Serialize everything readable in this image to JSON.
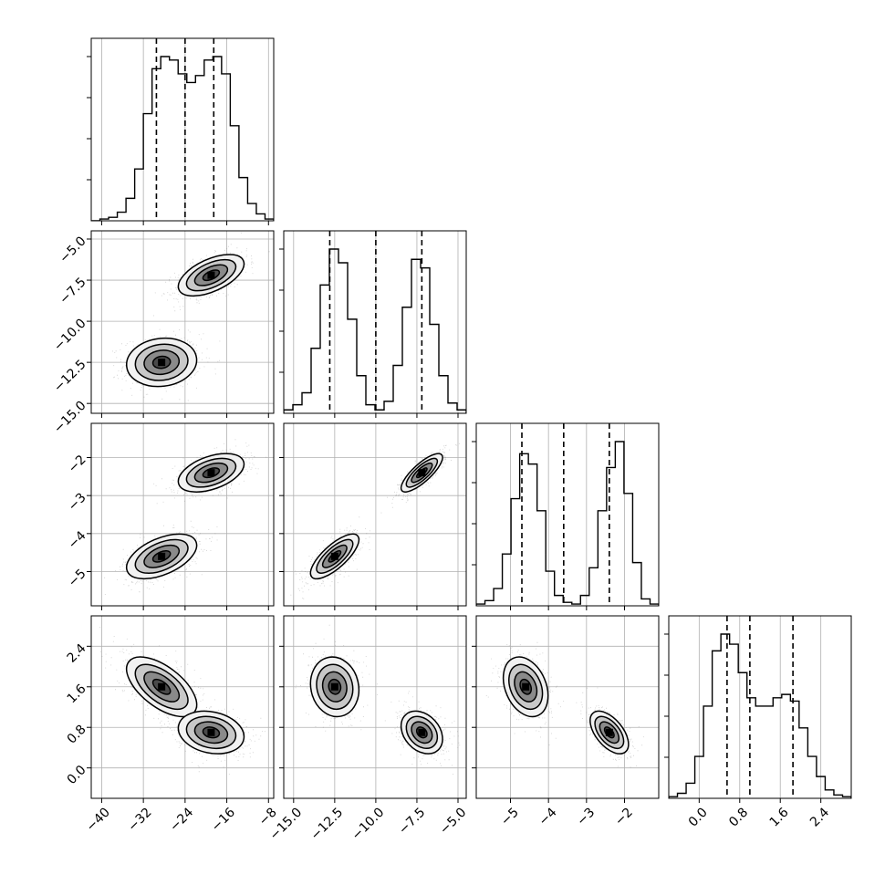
{
  "chart_data": {
    "type": "corner",
    "parameters": [
      {
        "id": "p0",
        "range": [
          -42,
          -7
        ],
        "ticks": [
          -40,
          -32,
          -24,
          -16,
          -8
        ],
        "tick_labels": [
          "−40",
          "−32",
          "−24",
          "−16",
          "−8"
        ],
        "quantiles": [
          -29.5,
          -24.0,
          -18.5
        ],
        "histogram": [
          0,
          1,
          2,
          5,
          13,
          30,
          62,
          88,
          95,
          93,
          85,
          80,
          84,
          93,
          95,
          85,
          55,
          25,
          10,
          4,
          1
        ]
      },
      {
        "id": "p1",
        "range": [
          -15.6,
          -4.5
        ],
        "ticks": [
          -15.0,
          -12.5,
          -10.0,
          -7.5,
          -5.0
        ],
        "tick_labels": [
          "−15.0",
          "−12.5",
          "−10.0",
          "−7.5",
          "−5.0"
        ],
        "quantiles": [
          -12.8,
          -10.0,
          -7.2
        ],
        "histogram": [
          2,
          5,
          12,
          38,
          75,
          96,
          88,
          55,
          22,
          5,
          2,
          7,
          28,
          62,
          90,
          85,
          52,
          22,
          6,
          2
        ]
      },
      {
        "id": "p2",
        "range": [
          -5.9,
          -1.1
        ],
        "ticks": [
          -5,
          -4,
          -3,
          -2
        ],
        "tick_labels": [
          "−5",
          "−4",
          "−3",
          "−2"
        ],
        "quantiles": [
          -4.7,
          -3.6,
          -2.4
        ],
        "histogram": [
          1,
          3,
          10,
          30,
          62,
          88,
          82,
          55,
          20,
          6,
          2,
          1,
          6,
          22,
          55,
          80,
          95,
          65,
          25,
          4,
          1
        ]
      },
      {
        "id": "p3",
        "range": [
          -0.6,
          3.0
        ],
        "ticks": [
          0.0,
          0.8,
          1.6,
          2.4
        ],
        "tick_labels": [
          "0.0",
          "0.8",
          "1.6",
          "2.4"
        ],
        "quantiles": [
          0.55,
          1.0,
          1.85
        ],
        "histogram": [
          1,
          3,
          9,
          25,
          55,
          88,
          98,
          92,
          75,
          60,
          55,
          55,
          60,
          62,
          58,
          42,
          25,
          13,
          5,
          2,
          1
        ]
      }
    ],
    "modes": [
      {
        "p0": -28.5,
        "p1": -12.5,
        "p2": -4.6,
        "p3": 1.6,
        "sd": [
          3.2,
          0.7,
          0.28,
          0.28
        ],
        "corr": {
          "p0p1": 0.1,
          "p0p2": 0.5,
          "p0p3": -0.6,
          "p1p2": 0.75,
          "p1p3": -0.1,
          "p2p3": -0.3
        }
      },
      {
        "p0": -19.0,
        "p1": -7.2,
        "p2": -2.4,
        "p3": 0.7,
        "sd": [
          3.0,
          0.6,
          0.24,
          0.2
        ],
        "corr": {
          "p0p1": 0.55,
          "p0p2": 0.45,
          "p0p3": -0.2,
          "p1p2": 0.8,
          "p1p3": -0.3,
          "p2p3": -0.55
        }
      }
    ],
    "contour_levels_sigma": [
      0.5,
      1.0,
      1.5,
      2.0
    ],
    "grid": true,
    "legend": "none",
    "title": "",
    "xlabel": "",
    "ylabel": ""
  }
}
